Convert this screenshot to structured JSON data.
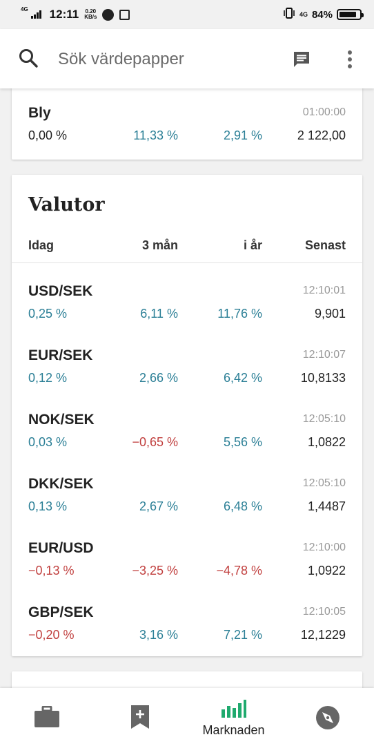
{
  "status_bar": {
    "network": "4G",
    "time": "12:11",
    "speed_value": "0.20",
    "speed_unit": "KB/s",
    "network_right": "4G",
    "battery": "84%",
    "battery_level": 0.84
  },
  "search": {
    "placeholder": "Sök värdepapper"
  },
  "partial_card": {
    "row": {
      "name": "Bly",
      "time": "01:00:00",
      "today": "0,00 %",
      "three_months": "11,33 %",
      "ytd": "2,91 %",
      "latest": "2 122,00"
    }
  },
  "valutor": {
    "title": "Valutor",
    "headers": {
      "today": "Idag",
      "three_months": "3 mån",
      "ytd": "i år",
      "latest": "Senast"
    },
    "rows": [
      {
        "name": "USD/SEK",
        "time": "12:10:01",
        "today": "0,25 %",
        "three_months": "6,11 %",
        "ytd": "11,76 %",
        "latest": "9,901"
      },
      {
        "name": "EUR/SEK",
        "time": "12:10:07",
        "today": "0,12 %",
        "three_months": "2,66 %",
        "ytd": "6,42 %",
        "latest": "10,8133"
      },
      {
        "name": "NOK/SEK",
        "time": "12:05:10",
        "today": "0,03 %",
        "three_months": "−0,65 %",
        "ytd": "5,56 %",
        "latest": "1,0822"
      },
      {
        "name": "DKK/SEK",
        "time": "12:05:10",
        "today": "0,13 %",
        "three_months": "2,67 %",
        "ytd": "6,48 %",
        "latest": "1,4487"
      },
      {
        "name": "EUR/USD",
        "time": "12:10:00",
        "today": "−0,13 %",
        "three_months": "−3,25 %",
        "ytd": "−4,78 %",
        "latest": "1,0922"
      },
      {
        "name": "GBP/SEK",
        "time": "12:10:05",
        "today": "−0,20 %",
        "three_months": "3,16 %",
        "ytd": "7,21 %",
        "latest": "12,1229"
      }
    ]
  },
  "bottom_nav": {
    "items": [
      {
        "icon": "briefcase-icon",
        "label": ""
      },
      {
        "icon": "bookmark-add-icon",
        "label": ""
      },
      {
        "icon": "bar-chart-icon",
        "label": "Marknaden",
        "active": true
      },
      {
        "icon": "compass-icon",
        "label": ""
      }
    ]
  },
  "colors": {
    "positive": "#2b7f96",
    "negative": "#c1403f",
    "neutral": "#222222",
    "active_nav": "#1faa6e"
  }
}
